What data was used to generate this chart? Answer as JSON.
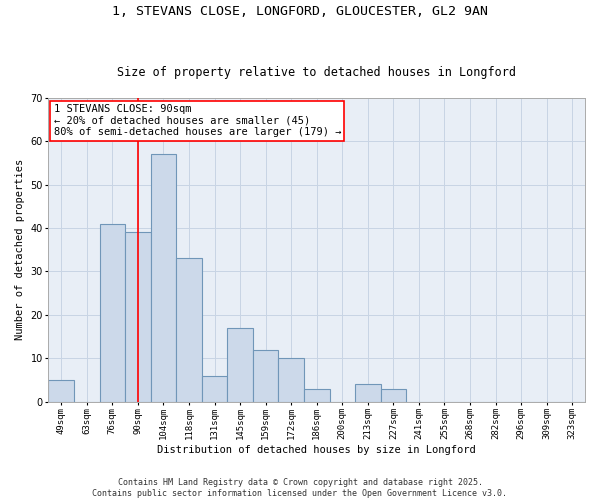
{
  "title_line1": "1, STEVANS CLOSE, LONGFORD, GLOUCESTER, GL2 9AN",
  "title_line2": "Size of property relative to detached houses in Longford",
  "xlabel": "Distribution of detached houses by size in Longford",
  "ylabel": "Number of detached properties",
  "categories": [
    "49sqm",
    "63sqm",
    "76sqm",
    "90sqm",
    "104sqm",
    "118sqm",
    "131sqm",
    "145sqm",
    "159sqm",
    "172sqm",
    "186sqm",
    "200sqm",
    "213sqm",
    "227sqm",
    "241sqm",
    "255sqm",
    "268sqm",
    "282sqm",
    "296sqm",
    "309sqm",
    "323sqm"
  ],
  "values": [
    5,
    0,
    41,
    39,
    57,
    33,
    6,
    17,
    12,
    10,
    3,
    0,
    4,
    3,
    0,
    0,
    0,
    0,
    0,
    0,
    0
  ],
  "bar_color": "#ccd9ea",
  "bar_edge_color": "#7096b8",
  "bar_linewidth": 0.8,
  "vline_x_idx": 3,
  "vline_color": "red",
  "vline_linewidth": 1.2,
  "annotation_text": "1 STEVANS CLOSE: 90sqm\n← 20% of detached houses are smaller (45)\n80% of semi-detached houses are larger (179) →",
  "annotation_box_color": "white",
  "annotation_border_color": "red",
  "ylim": [
    0,
    70
  ],
  "yticks": [
    0,
    10,
    20,
    30,
    40,
    50,
    60,
    70
  ],
  "grid_color": "#c8d4e4",
  "background_color": "#e8eef6",
  "footnote": "Contains HM Land Registry data © Crown copyright and database right 2025.\nContains public sector information licensed under the Open Government Licence v3.0.",
  "title_fontsize": 9.5,
  "subtitle_fontsize": 8.5,
  "tick_fontsize": 6.5,
  "ylabel_fontsize": 7.5,
  "xlabel_fontsize": 7.5,
  "annotation_fontsize": 7.5,
  "footnote_fontsize": 6.0
}
